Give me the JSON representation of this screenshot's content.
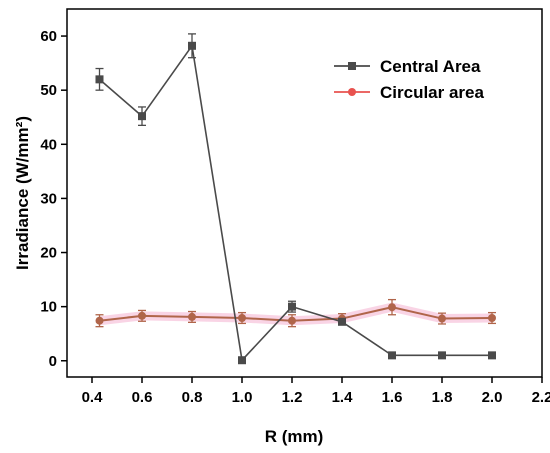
{
  "chart_data": {
    "type": "line",
    "xlabel": "R (mm)",
    "ylabel": "Irradiance (W/mm²)",
    "xlim": [
      0.3,
      2.2
    ],
    "ylim": [
      -3,
      65
    ],
    "xticks": [
      0.4,
      0.6,
      0.8,
      1.0,
      1.2,
      1.4,
      1.6,
      1.8,
      2.0,
      2.2
    ],
    "xtick_labels": [
      "0.4",
      "0.6",
      "0.8",
      "1.0",
      "1.2",
      "1.4",
      "1.6",
      "1.8",
      "2.0",
      "2.2"
    ],
    "yticks": [
      0,
      10,
      20,
      30,
      40,
      50,
      60
    ],
    "ytick_labels": [
      "0",
      "10",
      "20",
      "30",
      "40",
      "50",
      "60"
    ],
    "legend_position": "top-right",
    "grid": false,
    "series": [
      {
        "name": "Central Area",
        "color": "#4a4a4a",
        "marker": "square",
        "x": [
          0.43,
          0.6,
          0.8,
          1.0,
          1.2,
          1.4,
          1.6,
          1.8,
          2.0
        ],
        "y": [
          52.0,
          45.2,
          58.2,
          0.1,
          10.0,
          7.2,
          1.0,
          1.0,
          1.0
        ],
        "err": [
          2.0,
          1.7,
          2.2,
          0,
          1.0,
          0.5,
          0,
          0,
          0
        ]
      },
      {
        "name": "Circular area",
        "color": "#e8524f",
        "marker": "circle",
        "x": [
          0.43,
          0.6,
          0.8,
          1.0,
          1.2,
          1.4,
          1.6,
          1.8,
          2.0
        ],
        "y": [
          7.4,
          8.3,
          8.1,
          7.9,
          7.4,
          7.8,
          9.9,
          7.8,
          7.9
        ],
        "err": [
          1.1,
          1.0,
          1.0,
          1.0,
          1.1,
          0.9,
          1.4,
          1.0,
          1.0
        ]
      }
    ]
  }
}
